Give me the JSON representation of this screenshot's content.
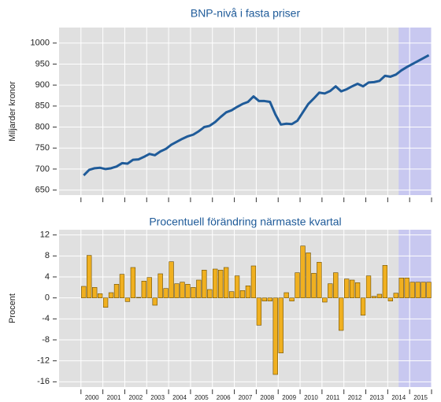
{
  "chart_data": [
    {
      "type": "line",
      "title": "BNP-nivå i fasta priser",
      "y_label": "Miljarder kronor",
      "color": "#1f5b99",
      "ylim": [
        638,
        1037
      ],
      "yticks": [
        650,
        700,
        750,
        800,
        850,
        900,
        950,
        1000
      ],
      "grid": true,
      "forecast_shade": {
        "from": 58,
        "color": "#c8c8f0"
      },
      "values": [
        685,
        698,
        702,
        703,
        700,
        702,
        706,
        714,
        713,
        722,
        723,
        729,
        736,
        733,
        742,
        748,
        758,
        765,
        772,
        778,
        782,
        790,
        800,
        803,
        812,
        824,
        835,
        840,
        848,
        855,
        860,
        873,
        862,
        862,
        860,
        830,
        806,
        808,
        807,
        815,
        835,
        855,
        868,
        882,
        880,
        886,
        897,
        885,
        890,
        897,
        903,
        897,
        906,
        907,
        910,
        922,
        920,
        925,
        935,
        943,
        950,
        957,
        964,
        971
      ]
    },
    {
      "type": "bar",
      "title": "Procentuell förändring närmaste kvartal",
      "y_label": "Procent",
      "color": "#f0b020",
      "ylim": [
        -17,
        13
      ],
      "yticks": [
        -16,
        -12,
        -8,
        -4,
        0,
        4,
        8,
        12
      ],
      "grid": true,
      "forecast_shade": {
        "from": 58,
        "color": "#c8c8f0"
      },
      "categories": [
        null,
        "2000",
        null,
        null,
        null,
        "2001",
        null,
        null,
        null,
        "2002",
        null,
        null,
        null,
        "2003",
        null,
        null,
        null,
        "2004",
        null,
        null,
        null,
        "2005",
        null,
        null,
        null,
        "2006",
        null,
        null,
        null,
        "2007",
        null,
        null,
        null,
        "2008",
        null,
        null,
        null,
        "2009",
        null,
        null,
        null,
        "2010",
        null,
        null,
        null,
        "2011",
        null,
        null,
        null,
        "2012",
        null,
        null,
        null,
        "2013",
        null,
        null,
        null,
        "2014",
        null,
        null,
        null,
        "2015",
        null,
        null
      ],
      "values": [
        2.2,
        8.1,
        2.0,
        0.8,
        -1.8,
        1.0,
        2.6,
        4.5,
        -0.7,
        5.8,
        0.1,
        3.2,
        3.9,
        -1.4,
        4.6,
        1.8,
        6.9,
        2.7,
        3.0,
        2.6,
        2.0,
        3.4,
        5.3,
        1.6,
        5.5,
        5.3,
        5.8,
        1.2,
        4.2,
        1.4,
        2.3,
        6.1,
        -5.2,
        -0.6,
        -0.6,
        -14.6,
        -10.5,
        1.0,
        -0.6,
        4.8,
        9.9,
        8.6,
        4.7,
        6.8,
        -0.8,
        2.7,
        4.8,
        -6.2,
        3.6,
        3.4,
        2.9,
        -3.3,
        4.2,
        0.3,
        0.7,
        6.2,
        -0.6,
        0.9,
        3.8,
        3.8,
        3.0,
        3.0,
        3.0,
        3.0
      ]
    }
  ]
}
